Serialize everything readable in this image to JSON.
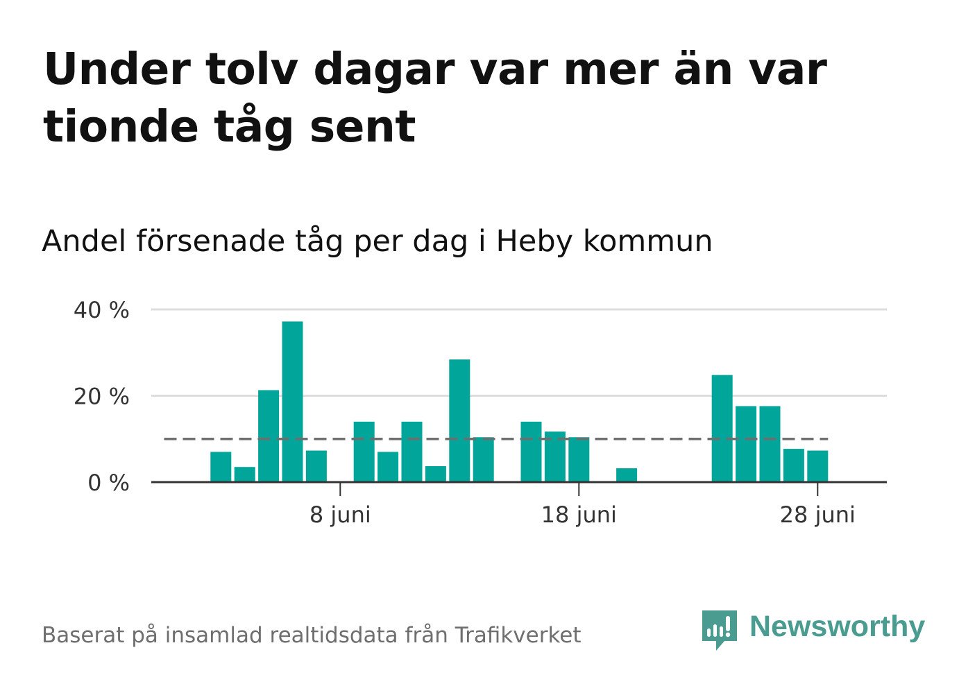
{
  "title": "Under tolv dagar var mer än var tionde tåg sent",
  "subtitle": "Andel försenade tåg per dag i Heby kommun",
  "source": "Baserat på insamlad realtidsdata från Trafikverket",
  "brand": {
    "name": "Newsworthy",
    "icon": "newsworthy-logo-icon"
  },
  "colors": {
    "bar": "#01a59a",
    "reference_line": "#6e6e6e",
    "grid": "#dddddd",
    "axis": "#333333",
    "brand": "#4a9b90"
  },
  "chart_data": {
    "type": "bar",
    "x": [
      "1 juni",
      "2 juni",
      "3 juni",
      "4 juni",
      "5 juni",
      "6 juni",
      "7 juni",
      "8 juni",
      "9 juni",
      "10 juni",
      "11 juni",
      "12 juni",
      "13 juni",
      "14 juni",
      "15 juni",
      "16 juni",
      "17 juni",
      "18 juni",
      "19 juni",
      "20 juni",
      "21 juni",
      "22 juni",
      "23 juni",
      "24 juni",
      "25 juni",
      "26 juni",
      "27 juni",
      "28 juni",
      "29 juni",
      "30 juni"
    ],
    "values": [
      0,
      0,
      7,
      3.5,
      21.3,
      37.2,
      7.3,
      0,
      14,
      7,
      14,
      3.7,
      28.4,
      10.4,
      0,
      14,
      11.7,
      10.4,
      0,
      3.2,
      0,
      0,
      0,
      24.8,
      17.6,
      17.6,
      7.7,
      7.3,
      null,
      null
    ],
    "reference_line": {
      "value": 10,
      "style": "dashed"
    },
    "y_ticks": [
      0,
      20,
      40
    ],
    "y_tick_labels": [
      "0 %",
      "20 %",
      "40 %"
    ],
    "ylim": [
      0,
      40
    ],
    "x_ticks": [
      "8 juni",
      "18 juni",
      "28 juni"
    ],
    "xlabel": "",
    "ylabel": "",
    "grid": true,
    "legend": "none"
  }
}
